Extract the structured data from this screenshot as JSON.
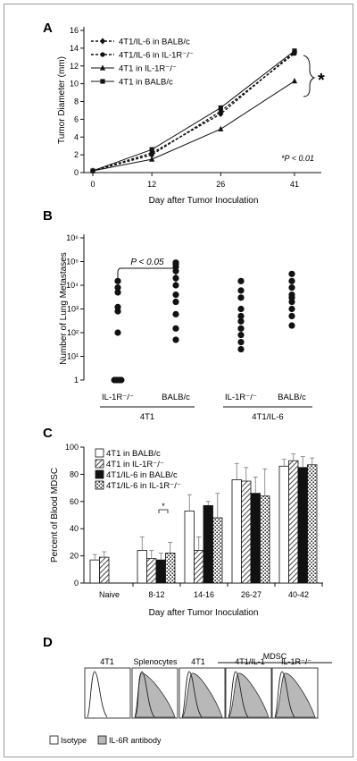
{
  "colors": {
    "ink": "#111111",
    "hist_fill": "#b8b8b8",
    "hatch": "#333333",
    "frame": "#9a9a9a"
  },
  "panelA": {
    "letter": "A",
    "ylabel": "Tumor Diameter (mm)",
    "xlabel": "Day after Tumor Inoculation",
    "sig_star": "*",
    "pvalue": "*P < 0.01",
    "legend": [
      "4T1/IL-6 in BALB/c",
      "4T1/IL-6 in IL-1R⁻/⁻",
      "4T1 in IL-1R⁻/⁻",
      "4T1 in BALB/c"
    ],
    "chart_data": {
      "type": "line",
      "x": [
        0,
        12,
        26,
        41
      ],
      "x_ticks": [
        "0",
        "12",
        "26",
        "41"
      ],
      "ylim": [
        0,
        16
      ],
      "y_ticks": [
        "0",
        "2",
        "4",
        "6",
        "8",
        "10",
        "12",
        "14",
        "16"
      ],
      "series": [
        {
          "name": "4T1/IL-6 in BALB/c",
          "values": [
            0.2,
            2.2,
            6.6,
            13.6
          ],
          "marker": "diamond",
          "dash": true
        },
        {
          "name": "4T1/IL-6 in IL-1R⁻/⁻",
          "values": [
            0.2,
            2.0,
            6.9,
            13.4
          ],
          "marker": "circle",
          "dash": true
        },
        {
          "name": "4T1 in IL-1R⁻/⁻",
          "values": [
            0.2,
            1.5,
            4.9,
            10.3
          ],
          "marker": "triangle",
          "dash": false
        },
        {
          "name": "4T1 in BALB/c",
          "values": [
            0.2,
            2.6,
            7.3,
            13.7
          ],
          "marker": "square",
          "dash": false
        }
      ]
    }
  },
  "panelB": {
    "letter": "B",
    "ylabel": "Number of Lung Metastases",
    "pvalue": "P < 0.05",
    "chart_data": {
      "type": "scatter",
      "y_scale": "log",
      "y_ticks": [
        "1",
        "10¹",
        "10²",
        "10³",
        "10⁴",
        "10⁵",
        "10⁶"
      ],
      "groups": [
        {
          "label": "IL-1R⁻/⁻",
          "parent": "4T1",
          "values": [
            1,
            1,
            1,
            1,
            100,
            800,
            1200,
            5000,
            8000,
            15000
          ]
        },
        {
          "label": "BALB/c",
          "parent": "4T1",
          "values": [
            50,
            150,
            600,
            2000,
            4000,
            10000,
            20000,
            40000,
            60000,
            80000,
            90000
          ]
        },
        {
          "label": "IL-1R⁻/⁻",
          "parent": "4T1/IL-6",
          "values": [
            20,
            40,
            80,
            150,
            300,
            500,
            1000,
            3000,
            6000,
            15000
          ]
        },
        {
          "label": "BALB/c",
          "parent": "4T1/IL-6",
          "values": [
            200,
            500,
            1000,
            2000,
            3000,
            4000,
            8000,
            15000,
            30000
          ]
        }
      ],
      "parents": [
        "4T1",
        "4T1/IL-6"
      ]
    }
  },
  "panelC": {
    "letter": "C",
    "ylabel": "Percent of Blood MDSC",
    "xlabel": "Day after Tumor Inoculation",
    "sig_star": "*",
    "chart_data": {
      "type": "bar",
      "categories": [
        "Naive",
        "8-12",
        "14-16",
        "26-27",
        "40-42"
      ],
      "ylim": [
        0,
        100
      ],
      "y_ticks": [
        "0",
        "20",
        "40",
        "60",
        "80",
        "100"
      ],
      "series": [
        {
          "name": "4T1 in BALB/c",
          "pattern": "white",
          "values": [
            17,
            24,
            53,
            76,
            86
          ],
          "errors": [
            4,
            10,
            12,
            12,
            5
          ]
        },
        {
          "name": "4T1 in IL-1R⁻/⁻",
          "pattern": "hatch",
          "values": [
            19,
            18,
            24,
            75,
            90
          ],
          "errors": [
            4,
            6,
            10,
            10,
            5
          ]
        },
        {
          "name": "4T1/IL-6 in BALB/c",
          "pattern": "black",
          "values": [
            null,
            17,
            57,
            66,
            85
          ],
          "errors": [
            null,
            5,
            3,
            12,
            8
          ]
        },
        {
          "name": "4T1/IL-6 in IL-1R⁻/⁻",
          "pattern": "dots",
          "values": [
            null,
            22,
            48,
            64,
            87
          ],
          "errors": [
            null,
            8,
            18,
            20,
            5
          ]
        }
      ]
    }
  },
  "panelD": {
    "letter": "D",
    "mdsc_label": "MDSC",
    "columns": [
      "4T1",
      "Splenocytes",
      "4T1",
      "4T1/IL-1",
      "IL-1R⁻/⁻"
    ],
    "legend": [
      "Isotype",
      "IL-6R antibody"
    ]
  }
}
